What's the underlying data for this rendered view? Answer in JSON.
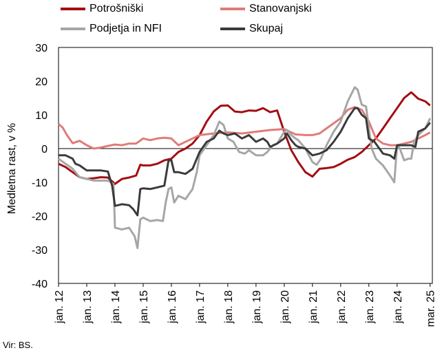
{
  "chart_data": {
    "type": "line",
    "title": "",
    "xlabel": "",
    "ylabel": "Medletna rast, v %",
    "ylim": [
      -40,
      30
    ],
    "yticks": [
      30,
      20,
      10,
      0,
      -10,
      -20,
      -30,
      -40
    ],
    "xlim": [
      2012.0,
      2025.25
    ],
    "xtick_labels": [
      {
        "label": "jan. 12",
        "x": 2012.0
      },
      {
        "label": "jan. 13",
        "x": 2013.0
      },
      {
        "label": "jan. 14",
        "x": 2014.0
      },
      {
        "label": "jan. 15",
        "x": 2015.0
      },
      {
        "label": "jan. 16",
        "x": 2016.0
      },
      {
        "label": "jan. 17",
        "x": 2017.0
      },
      {
        "label": "jan. 18",
        "x": 2018.0
      },
      {
        "label": "jan. 19",
        "x": 2019.0
      },
      {
        "label": "jan. 20",
        "x": 2020.0
      },
      {
        "label": "jan. 21",
        "x": 2021.0
      },
      {
        "label": "jan. 22",
        "x": 2022.0
      },
      {
        "label": "jan. 23",
        "x": 2023.0
      },
      {
        "label": "jan. 24",
        "x": 2024.0
      },
      {
        "label": "mar. 25",
        "x": 2025.17
      }
    ],
    "grid": false,
    "legend_position": "top",
    "series": [
      {
        "name": "Potrošniški",
        "color": "#a30d12",
        "points": [
          [
            2012.0,
            -4.5
          ],
          [
            2012.25,
            -5.5
          ],
          [
            2012.5,
            -7
          ],
          [
            2012.75,
            -8.5
          ],
          [
            2013.0,
            -9
          ],
          [
            2013.25,
            -8.8
          ],
          [
            2013.5,
            -8.5
          ],
          [
            2013.75,
            -8.6
          ],
          [
            2014.0,
            -10.5
          ],
          [
            2014.25,
            -9
          ],
          [
            2014.5,
            -8.6
          ],
          [
            2014.75,
            -8
          ],
          [
            2014.9,
            -4.8
          ],
          [
            2015.0,
            -5
          ],
          [
            2015.25,
            -5
          ],
          [
            2015.5,
            -4.5
          ],
          [
            2015.75,
            -3.5
          ],
          [
            2016.0,
            -3
          ],
          [
            2016.25,
            -1
          ],
          [
            2016.5,
            0
          ],
          [
            2016.75,
            1.5
          ],
          [
            2017.0,
            4
          ],
          [
            2017.25,
            8
          ],
          [
            2017.5,
            11
          ],
          [
            2017.75,
            12.7
          ],
          [
            2018.0,
            12.8
          ],
          [
            2018.25,
            11
          ],
          [
            2018.5,
            10.8
          ],
          [
            2018.75,
            11.3
          ],
          [
            2019.0,
            11.2
          ],
          [
            2019.25,
            12
          ],
          [
            2019.5,
            10.8
          ],
          [
            2019.75,
            11.3
          ],
          [
            2020.0,
            5
          ],
          [
            2020.25,
            -0.5
          ],
          [
            2020.5,
            -4
          ],
          [
            2020.75,
            -7
          ],
          [
            2021.0,
            -8.3
          ],
          [
            2021.25,
            -6
          ],
          [
            2021.5,
            -5.8
          ],
          [
            2021.75,
            -5.5
          ],
          [
            2022.0,
            -4.5
          ],
          [
            2022.25,
            -3.3
          ],
          [
            2022.5,
            -2.5
          ],
          [
            2022.75,
            -1
          ],
          [
            2023.0,
            1
          ],
          [
            2023.25,
            3
          ],
          [
            2023.5,
            6
          ],
          [
            2023.75,
            9
          ],
          [
            2024.0,
            12
          ],
          [
            2024.25,
            15
          ],
          [
            2024.5,
            16.7
          ],
          [
            2024.75,
            14.8
          ],
          [
            2025.0,
            14
          ],
          [
            2025.17,
            12.8
          ]
        ]
      },
      {
        "name": "Stanovanjski",
        "color": "#e07b78",
        "points": [
          [
            2012.0,
            7.3
          ],
          [
            2012.15,
            6.2
          ],
          [
            2012.3,
            4
          ],
          [
            2012.5,
            1.6
          ],
          [
            2012.75,
            2.3
          ],
          [
            2013.0,
            1
          ],
          [
            2013.25,
            0
          ],
          [
            2013.5,
            0.3
          ],
          [
            2013.75,
            0.8
          ],
          [
            2014.0,
            1.2
          ],
          [
            2014.25,
            1
          ],
          [
            2014.5,
            1.5
          ],
          [
            2014.75,
            1.5
          ],
          [
            2015.0,
            3
          ],
          [
            2015.25,
            2.5
          ],
          [
            2015.5,
            3
          ],
          [
            2015.75,
            3.2
          ],
          [
            2016.0,
            3
          ],
          [
            2016.25,
            1
          ],
          [
            2016.5,
            2
          ],
          [
            2016.75,
            3
          ],
          [
            2017.0,
            4
          ],
          [
            2017.5,
            4.5
          ],
          [
            2018.0,
            4.8
          ],
          [
            2018.5,
            4.5
          ],
          [
            2019.0,
            5
          ],
          [
            2019.5,
            5.5
          ],
          [
            2020.0,
            5.8
          ],
          [
            2020.2,
            5
          ],
          [
            2020.4,
            4.2
          ],
          [
            2020.75,
            4
          ],
          [
            2021.0,
            4
          ],
          [
            2021.25,
            4.5
          ],
          [
            2021.5,
            6
          ],
          [
            2021.75,
            7.5
          ],
          [
            2022.0,
            9
          ],
          [
            2022.25,
            11.5
          ],
          [
            2022.5,
            12.3
          ],
          [
            2022.75,
            11.5
          ],
          [
            2023.0,
            8
          ],
          [
            2023.25,
            3
          ],
          [
            2023.5,
            1.5
          ],
          [
            2023.75,
            1
          ],
          [
            2024.0,
            1
          ],
          [
            2024.25,
            1.5
          ],
          [
            2024.5,
            2
          ],
          [
            2024.75,
            3
          ],
          [
            2025.0,
            4
          ],
          [
            2025.17,
            4.8
          ]
        ]
      },
      {
        "name": "Podjetja in NFI",
        "color": "#a6a6a6",
        "points": [
          [
            2012.0,
            -3
          ],
          [
            2012.25,
            -4.5
          ],
          [
            2012.5,
            -6
          ],
          [
            2012.75,
            -8.5
          ],
          [
            2013.0,
            -9
          ],
          [
            2013.25,
            -9.5
          ],
          [
            2013.5,
            -9.5
          ],
          [
            2013.75,
            -9.5
          ],
          [
            2013.95,
            -10.5
          ],
          [
            2014.0,
            -23.5
          ],
          [
            2014.25,
            -24
          ],
          [
            2014.5,
            -23.5
          ],
          [
            2014.7,
            -26
          ],
          [
            2014.8,
            -29.5
          ],
          [
            2014.9,
            -21
          ],
          [
            2015.0,
            -20.5
          ],
          [
            2015.25,
            -21.5
          ],
          [
            2015.5,
            -21.2
          ],
          [
            2015.7,
            -21.5
          ],
          [
            2015.8,
            -16
          ],
          [
            2015.9,
            -12
          ],
          [
            2016.0,
            -11.5
          ],
          [
            2016.1,
            -16
          ],
          [
            2016.25,
            -14
          ],
          [
            2016.5,
            -15
          ],
          [
            2016.75,
            -12
          ],
          [
            2016.9,
            -7
          ],
          [
            2017.0,
            -2
          ],
          [
            2017.25,
            1
          ],
          [
            2017.5,
            4
          ],
          [
            2017.7,
            8
          ],
          [
            2017.85,
            7
          ],
          [
            2018.0,
            3
          ],
          [
            2018.2,
            2
          ],
          [
            2018.4,
            -1
          ],
          [
            2018.6,
            -1.5
          ],
          [
            2018.75,
            -0.5
          ],
          [
            2019.0,
            -2
          ],
          [
            2019.25,
            -2
          ],
          [
            2019.4,
            -1
          ],
          [
            2019.6,
            1
          ],
          [
            2019.75,
            1.5
          ],
          [
            2020.0,
            5
          ],
          [
            2020.1,
            5.5
          ],
          [
            2020.25,
            4
          ],
          [
            2020.4,
            3
          ],
          [
            2020.5,
            2.5
          ],
          [
            2020.75,
            0
          ],
          [
            2021.0,
            -4
          ],
          [
            2021.15,
            -4.8
          ],
          [
            2021.3,
            -3
          ],
          [
            2021.5,
            1
          ],
          [
            2021.75,
            5
          ],
          [
            2022.0,
            8
          ],
          [
            2022.25,
            14
          ],
          [
            2022.5,
            18.2
          ],
          [
            2022.6,
            17.5
          ],
          [
            2022.75,
            13
          ],
          [
            2022.9,
            12.5
          ],
          [
            2023.0,
            6
          ],
          [
            2023.1,
            0
          ],
          [
            2023.25,
            -3
          ],
          [
            2023.5,
            -5
          ],
          [
            2023.75,
            -8
          ],
          [
            2023.9,
            -10
          ],
          [
            2024.0,
            1
          ],
          [
            2024.1,
            0
          ],
          [
            2024.25,
            -3.5
          ],
          [
            2024.4,
            -3
          ],
          [
            2024.5,
            -3
          ],
          [
            2024.6,
            2
          ],
          [
            2024.75,
            4
          ],
          [
            2025.0,
            6
          ],
          [
            2025.17,
            9
          ]
        ]
      },
      {
        "name": "Skupaj",
        "color": "#3a3a3a",
        "points": [
          [
            2012.0,
            -2
          ],
          [
            2012.25,
            -2
          ],
          [
            2012.5,
            -3
          ],
          [
            2012.6,
            -4.5
          ],
          [
            2012.75,
            -5
          ],
          [
            2013.0,
            -6.5
          ],
          [
            2013.25,
            -6.5
          ],
          [
            2013.5,
            -6.5
          ],
          [
            2013.75,
            -6.8
          ],
          [
            2013.9,
            -11
          ],
          [
            2014.0,
            -17
          ],
          [
            2014.25,
            -16.5
          ],
          [
            2014.5,
            -16.8
          ],
          [
            2014.65,
            -18
          ],
          [
            2014.8,
            -19.8
          ],
          [
            2014.9,
            -12
          ],
          [
            2015.0,
            -11.8
          ],
          [
            2015.25,
            -12
          ],
          [
            2015.5,
            -11.5
          ],
          [
            2015.75,
            -11
          ],
          [
            2015.9,
            -3.5
          ],
          [
            2016.0,
            -3.5
          ],
          [
            2016.1,
            -7
          ],
          [
            2016.25,
            -7
          ],
          [
            2016.5,
            -7.5
          ],
          [
            2016.75,
            -6
          ],
          [
            2016.9,
            -3
          ],
          [
            2017.0,
            -1
          ],
          [
            2017.25,
            2
          ],
          [
            2017.5,
            3
          ],
          [
            2017.7,
            5.3
          ],
          [
            2017.85,
            4.5
          ],
          [
            2018.0,
            4
          ],
          [
            2018.25,
            4.5
          ],
          [
            2018.5,
            3
          ],
          [
            2018.75,
            4
          ],
          [
            2019.0,
            2
          ],
          [
            2019.25,
            3
          ],
          [
            2019.4,
            2
          ],
          [
            2019.5,
            0.5
          ],
          [
            2019.75,
            1.5
          ],
          [
            2020.0,
            3
          ],
          [
            2020.1,
            4.5
          ],
          [
            2020.25,
            2.5
          ],
          [
            2020.4,
            1
          ],
          [
            2020.5,
            0.5
          ],
          [
            2020.75,
            0
          ],
          [
            2021.0,
            -2
          ],
          [
            2021.25,
            -1.5
          ],
          [
            2021.5,
            -0.5
          ],
          [
            2021.75,
            2
          ],
          [
            2022.0,
            5
          ],
          [
            2022.25,
            9
          ],
          [
            2022.5,
            12
          ],
          [
            2022.6,
            12
          ],
          [
            2022.75,
            10
          ],
          [
            2022.9,
            9
          ],
          [
            2023.0,
            3
          ],
          [
            2023.2,
            2
          ],
          [
            2023.5,
            -1.5
          ],
          [
            2023.75,
            -2
          ],
          [
            2023.9,
            -3
          ],
          [
            2024.0,
            1
          ],
          [
            2024.25,
            1
          ],
          [
            2024.5,
            1
          ],
          [
            2024.65,
            0.5
          ],
          [
            2024.75,
            5
          ],
          [
            2025.0,
            6
          ],
          [
            2025.17,
            7.7
          ]
        ]
      }
    ]
  },
  "source_note": "Vir: BS."
}
